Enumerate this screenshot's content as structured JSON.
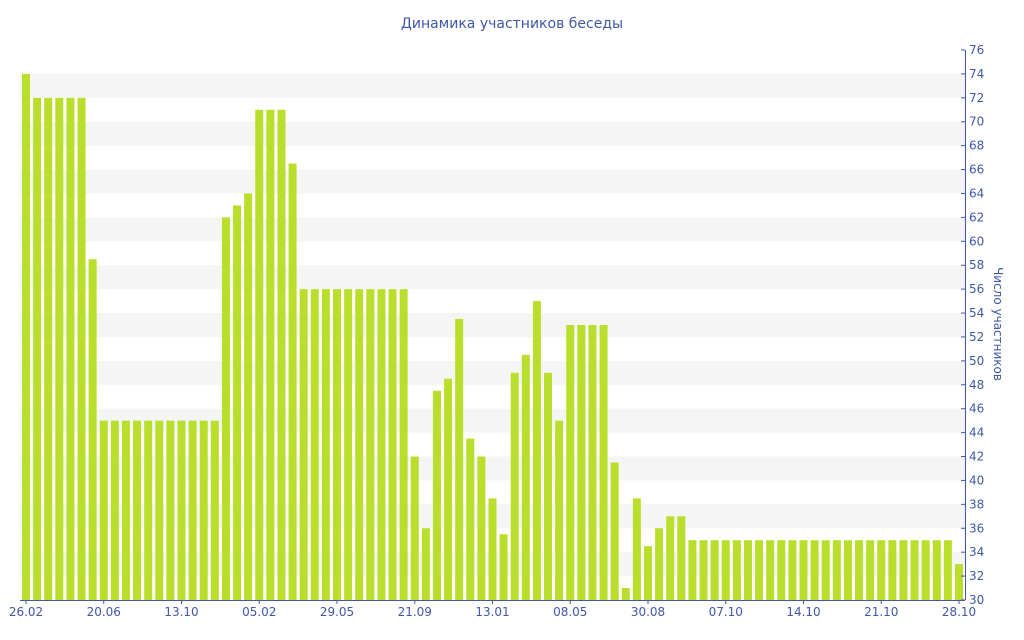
{
  "colors": {
    "bar": "#b9df2c",
    "band": "#f5f5f5",
    "text": "#3f58a8",
    "axis": "#3f58a8"
  },
  "chart_data": {
    "type": "bar",
    "title": "Динамика участников беседы",
    "xlabel": "",
    "ylabel": "Число участников",
    "ylim": [
      30,
      76
    ],
    "y_ticks": [
      30,
      32,
      34,
      36,
      38,
      40,
      42,
      44,
      46,
      48,
      50,
      52,
      54,
      56,
      58,
      60,
      62,
      64,
      66,
      68,
      70,
      72,
      74,
      76
    ],
    "y_axis_side": "right",
    "grid": "alternating horizontal bands",
    "x_tick_labels": [
      {
        "index": 0,
        "label": "26.02"
      },
      {
        "index": 7,
        "label": "20.06"
      },
      {
        "index": 14,
        "label": "13.10"
      },
      {
        "index": 21,
        "label": "05.02"
      },
      {
        "index": 28,
        "label": "29.05"
      },
      {
        "index": 35,
        "label": "21.09"
      },
      {
        "index": 42,
        "label": "13.01"
      },
      {
        "index": 49,
        "label": "08.05"
      },
      {
        "index": 56,
        "label": "30.08"
      },
      {
        "index": 63,
        "label": "07.10"
      },
      {
        "index": 70,
        "label": "14.10"
      },
      {
        "index": 77,
        "label": "21.10"
      },
      {
        "index": 84,
        "label": "28.10"
      }
    ],
    "values": [
      74,
      72,
      72,
      72,
      72,
      72,
      58.5,
      45,
      45,
      45,
      45,
      45,
      45,
      45,
      45,
      45,
      45,
      45,
      62,
      63,
      64,
      71,
      71,
      71,
      66.5,
      56,
      56,
      56,
      56,
      56,
      56,
      56,
      56,
      56,
      56,
      42,
      36,
      47.5,
      48.5,
      53.5,
      43.5,
      42,
      38.5,
      35.5,
      49,
      50.5,
      55,
      49,
      45,
      53,
      53,
      53,
      53,
      41.5,
      31,
      38.5,
      34.5,
      36,
      37,
      37,
      35,
      35,
      35,
      35,
      35,
      35,
      35,
      35,
      35,
      35,
      35,
      35,
      35,
      35,
      35,
      35,
      35,
      35,
      35,
      35,
      35,
      35,
      35,
      35,
      33
    ]
  }
}
